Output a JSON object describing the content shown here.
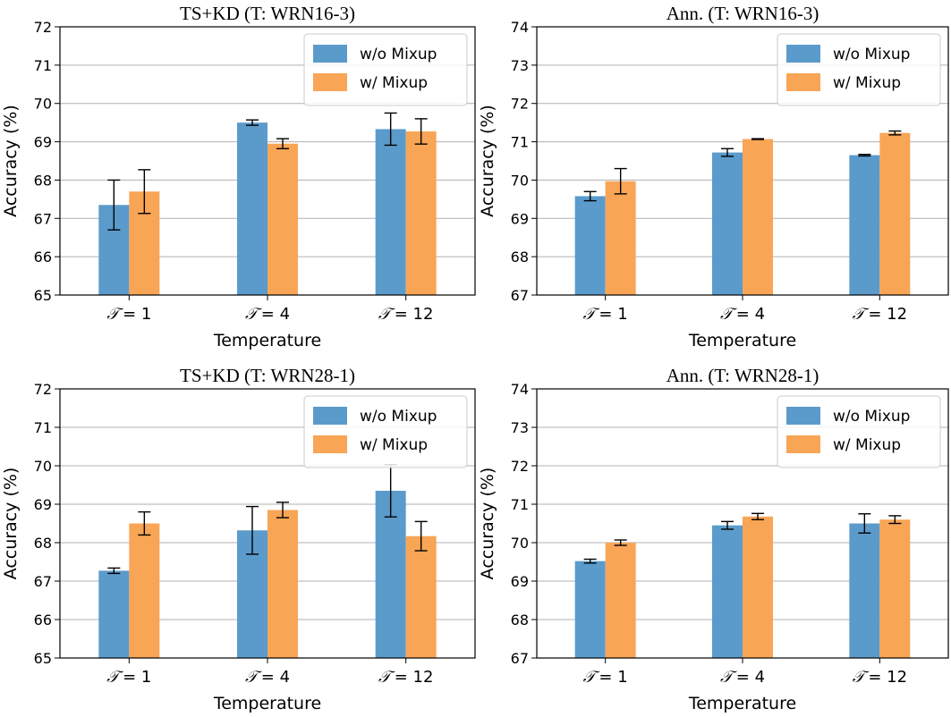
{
  "colors": {
    "without_mixup": "#5b9bcc",
    "with_mixup": "#f8a556"
  },
  "chart_data": [
    {
      "type": "bar",
      "title": "TS+KD (T: WRN16-3)",
      "xlabel": "Temperature",
      "ylabel": "Accuracy (%)",
      "ylim": [
        65,
        72
      ],
      "yticks": [
        "65",
        "66",
        "67",
        "68",
        "69",
        "70",
        "71",
        "72"
      ],
      "categories": [
        {
          "symbol": "𝒯",
          "rest": "= 1"
        },
        {
          "symbol": "𝒯",
          "rest": "= 4"
        },
        {
          "symbol": "𝒯",
          "rest": "= 12"
        }
      ],
      "grid": true,
      "legend_position": "top-right",
      "series": [
        {
          "name": "w/o Mixup",
          "values": [
            67.35,
            69.5,
            69.33
          ],
          "errors": [
            0.65,
            0.07,
            0.42
          ]
        },
        {
          "name": "w/ Mixup",
          "values": [
            67.7,
            68.95,
            69.27
          ],
          "errors": [
            0.57,
            0.13,
            0.33
          ]
        }
      ]
    },
    {
      "type": "bar",
      "title": "Ann. (T: WRN16-3)",
      "xlabel": "Temperature",
      "ylabel": "Accuracy (%)",
      "ylim": [
        67,
        74
      ],
      "yticks": [
        "67",
        "68",
        "69",
        "70",
        "71",
        "72",
        "73",
        "74"
      ],
      "categories": [
        {
          "symbol": "𝒯",
          "rest": "= 1"
        },
        {
          "symbol": "𝒯",
          "rest": "= 4"
        },
        {
          "symbol": "𝒯",
          "rest": "= 12"
        }
      ],
      "grid": true,
      "legend_position": "top-right",
      "series": [
        {
          "name": "w/o Mixup",
          "values": [
            69.58,
            70.72,
            70.65
          ],
          "errors": [
            0.12,
            0.1,
            0.02
          ]
        },
        {
          "name": "w/ Mixup",
          "values": [
            69.97,
            71.07,
            71.23
          ],
          "errors": [
            0.33,
            0.01,
            0.05
          ]
        }
      ]
    },
    {
      "type": "bar",
      "title": "TS+KD (T: WRN28-1)",
      "xlabel": "Temperature",
      "ylabel": "Accuracy (%)",
      "ylim": [
        65,
        72
      ],
      "yticks": [
        "65",
        "66",
        "67",
        "68",
        "69",
        "70",
        "71",
        "72"
      ],
      "categories": [
        {
          "symbol": "𝒯",
          "rest": "= 1"
        },
        {
          "symbol": "𝒯",
          "rest": "= 4"
        },
        {
          "symbol": "𝒯",
          "rest": "= 12"
        }
      ],
      "grid": true,
      "legend_position": "top-right",
      "series": [
        {
          "name": "w/o Mixup",
          "values": [
            67.27,
            68.32,
            69.35
          ],
          "errors": [
            0.07,
            0.62,
            0.68
          ]
        },
        {
          "name": "w/ Mixup",
          "values": [
            68.5,
            68.85,
            68.17
          ],
          "errors": [
            0.3,
            0.2,
            0.38
          ]
        }
      ]
    },
    {
      "type": "bar",
      "title": "Ann. (T: WRN28-1)",
      "xlabel": "Temperature",
      "ylabel": "Accuracy (%)",
      "ylim": [
        67,
        74
      ],
      "yticks": [
        "67",
        "68",
        "69",
        "70",
        "71",
        "72",
        "73",
        "74"
      ],
      "categories": [
        {
          "symbol": "𝒯",
          "rest": "= 1"
        },
        {
          "symbol": "𝒯",
          "rest": "= 4"
        },
        {
          "symbol": "𝒯",
          "rest": "= 12"
        }
      ],
      "grid": true,
      "legend_position": "top-right",
      "series": [
        {
          "name": "w/o Mixup",
          "values": [
            69.52,
            70.45,
            70.5
          ],
          "errors": [
            0.05,
            0.1,
            0.25
          ]
        },
        {
          "name": "w/ Mixup",
          "values": [
            70.0,
            70.68,
            70.6
          ],
          "errors": [
            0.07,
            0.08,
            0.1
          ]
        }
      ]
    }
  ]
}
